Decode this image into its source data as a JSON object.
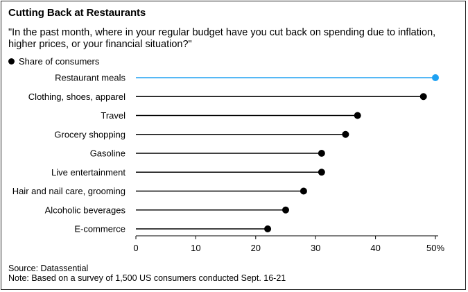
{
  "title": "Cutting Back at Restaurants",
  "subtitle": "\"In the past month, where in your regular budget have you cut back on spending due to inflation, higher prices, or your financial situation?\"",
  "legend_label": "Share of consumers",
  "source": "Source: Datassential",
  "note": "Note: Based on a survey of 1,500 US consumers conducted Sept. 16-21",
  "colors": {
    "highlight": "#1ea1f2",
    "default": "#000000"
  },
  "chart_data": {
    "type": "lollipop",
    "orientation": "horizontal",
    "categories": [
      "Restaurant meals",
      "Clothing, shoes, apparel",
      "Travel",
      "Grocery shopping",
      "Gasoline",
      "Live entertainment",
      "Hair and nail care, grooming",
      "Alcoholic beverages",
      "E-commerce"
    ],
    "series": [
      {
        "name": "Share of consumers",
        "values": [
          50,
          48,
          37,
          35,
          31,
          31,
          28,
          25,
          22
        ]
      }
    ],
    "highlight_index": 0,
    "xlim": [
      0,
      50
    ],
    "xticks": [
      0,
      10,
      20,
      30,
      40,
      50
    ],
    "xtick_labels": [
      "0",
      "10",
      "20",
      "30",
      "40",
      "50%"
    ],
    "grid": false,
    "legend_position": "top-left"
  }
}
